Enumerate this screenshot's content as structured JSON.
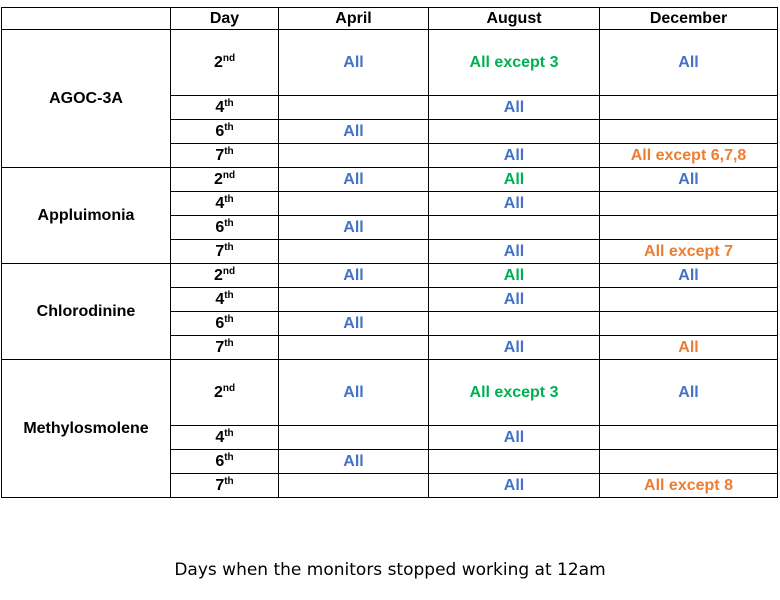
{
  "table": {
    "headers": [
      "",
      "Day",
      "April",
      "August",
      "December"
    ],
    "groups": [
      {
        "name": "AGOC-3A",
        "rows": [
          {
            "day": "2",
            "suffix": "nd",
            "april": "All",
            "august": "All except 3",
            "december": "All",
            "august_color": "green",
            "december_color": "blue",
            "tall": true
          },
          {
            "day": "4",
            "suffix": "th",
            "april": "",
            "august": "All",
            "december": "",
            "august_color": "blue",
            "december_color": "blue"
          },
          {
            "day": "6",
            "suffix": "th",
            "april": "All",
            "august": "",
            "december": "",
            "august_color": "blue",
            "december_color": "blue"
          },
          {
            "day": "7",
            "suffix": "th",
            "april": "",
            "august": "All",
            "december": "All except 6,7,8",
            "august_color": "blue",
            "december_color": "orange"
          }
        ]
      },
      {
        "name": "Appluimonia",
        "rows": [
          {
            "day": "2",
            "suffix": "nd",
            "april": "All",
            "august": "All",
            "december": "All",
            "august_color": "green",
            "december_color": "blue"
          },
          {
            "day": "4",
            "suffix": "th",
            "april": "",
            "august": "All",
            "december": "",
            "august_color": "blue",
            "december_color": "blue"
          },
          {
            "day": "6",
            "suffix": "th",
            "april": "All",
            "august": "",
            "december": "",
            "august_color": "blue",
            "december_color": "blue"
          },
          {
            "day": "7",
            "suffix": "th",
            "april": "",
            "august": "All",
            "december": "All except 7",
            "august_color": "blue",
            "december_color": "orange"
          }
        ]
      },
      {
        "name": "Chlorodinine",
        "rows": [
          {
            "day": "2",
            "suffix": "nd",
            "april": "All",
            "august": "All",
            "december": "All",
            "august_color": "green",
            "december_color": "blue"
          },
          {
            "day": "4",
            "suffix": "th",
            "april": "",
            "august": "All",
            "december": "",
            "august_color": "blue",
            "december_color": "blue"
          },
          {
            "day": "6",
            "suffix": "th",
            "april": "All",
            "august": "",
            "december": "",
            "august_color": "blue",
            "december_color": "blue"
          },
          {
            "day": "7",
            "suffix": "th",
            "april": "",
            "august": "All",
            "december": "All",
            "august_color": "blue",
            "december_color": "orange"
          }
        ]
      },
      {
        "name": "Methylosmolene",
        "rows": [
          {
            "day": "2",
            "suffix": "nd",
            "april": "All",
            "august": "All except 3",
            "december": "All",
            "august_color": "green",
            "december_color": "blue",
            "tall": true
          },
          {
            "day": "4",
            "suffix": "th",
            "april": "",
            "august": "All",
            "december": "",
            "august_color": "blue",
            "december_color": "blue"
          },
          {
            "day": "6",
            "suffix": "th",
            "april": "All",
            "august": "",
            "december": "",
            "august_color": "blue",
            "december_color": "blue"
          },
          {
            "day": "7",
            "suffix": "th",
            "april": "",
            "august": "All",
            "december": "All except 8",
            "august_color": "blue",
            "december_color": "orange"
          }
        ]
      }
    ]
  },
  "caption": "Days when the monitors stopped working at 12am",
  "colors": {
    "blue": "#4472C4",
    "green": "#00B050",
    "orange": "#ED7D31",
    "grid": "#000000"
  }
}
